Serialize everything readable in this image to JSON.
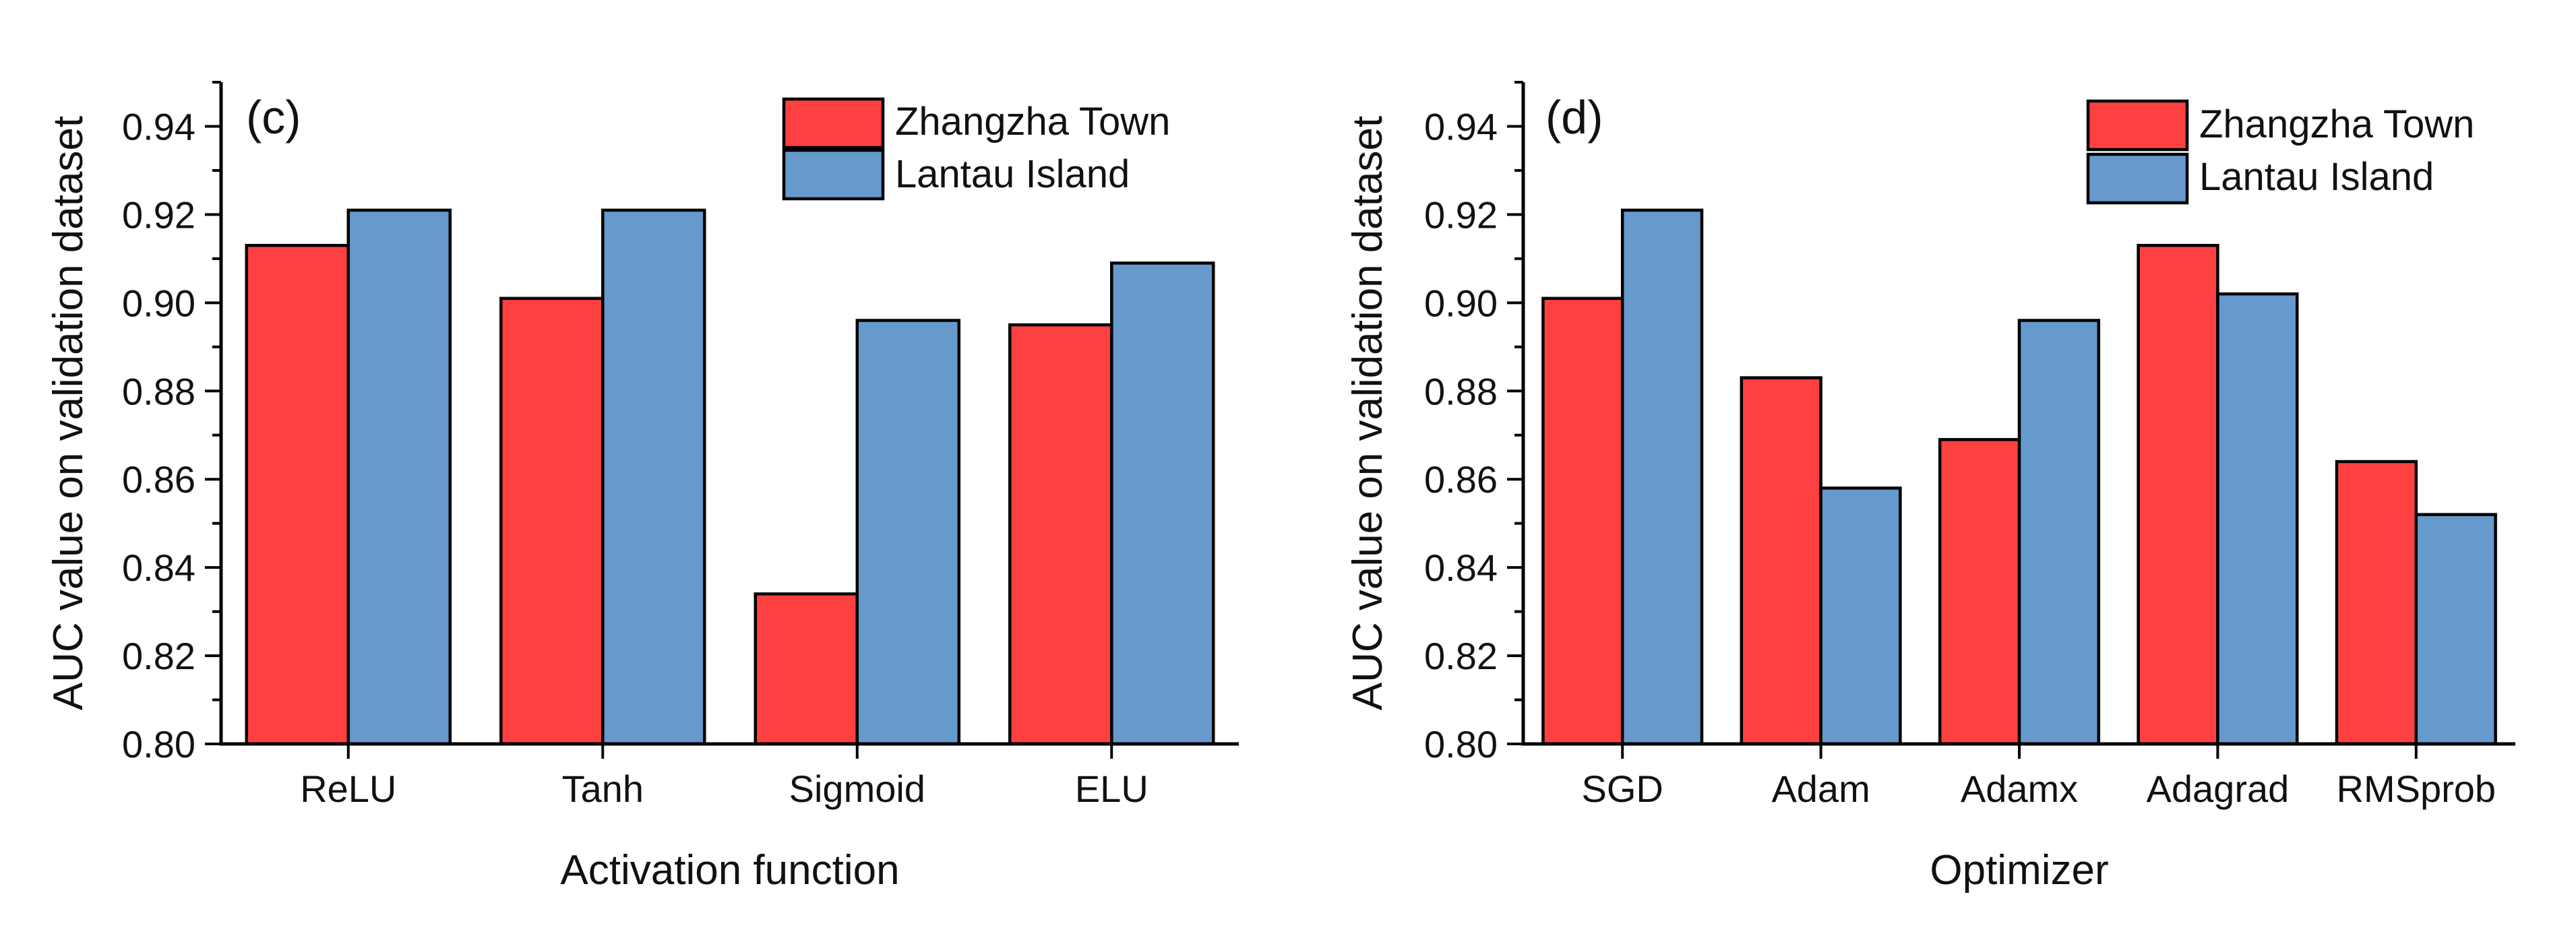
{
  "colors": {
    "zhangzha": "#FF4040",
    "lantau": "#6699CC"
  },
  "chart_data": [
    {
      "type": "bar",
      "panel_label": "(c)",
      "xlabel": "Activation function",
      "ylabel": "AUC value on validation dataset",
      "categories": [
        "ReLU",
        "Tanh",
        "Sigmoid",
        "ELU"
      ],
      "series": [
        {
          "name": "Zhangzha Town",
          "values": [
            0.913,
            0.901,
            0.834,
            0.895
          ]
        },
        {
          "name": "Lantau Island",
          "values": [
            0.921,
            0.921,
            0.896,
            0.909
          ]
        }
      ],
      "ylim": [
        0.8,
        0.95
      ],
      "yticks": [
        "0.80",
        "0.82",
        "0.84",
        "0.86",
        "0.88",
        "0.90",
        "0.92",
        "0.94"
      ],
      "legend_position": "top-right"
    },
    {
      "type": "bar",
      "panel_label": "(d)",
      "xlabel": "Optimizer",
      "ylabel": "AUC value on validation dataset",
      "categories": [
        "SGD",
        "Adam",
        "Adamx",
        "Adagrad",
        "RMSprob"
      ],
      "series": [
        {
          "name": "Zhangzha Town",
          "values": [
            0.901,
            0.883,
            0.869,
            0.913,
            0.864
          ]
        },
        {
          "name": "Lantau Island",
          "values": [
            0.921,
            0.858,
            0.896,
            0.902,
            0.852
          ]
        }
      ],
      "ylim": [
        0.8,
        0.95
      ],
      "yticks": [
        "0.80",
        "0.82",
        "0.84",
        "0.86",
        "0.88",
        "0.90",
        "0.92",
        "0.94"
      ],
      "legend_position": "top-right"
    }
  ]
}
